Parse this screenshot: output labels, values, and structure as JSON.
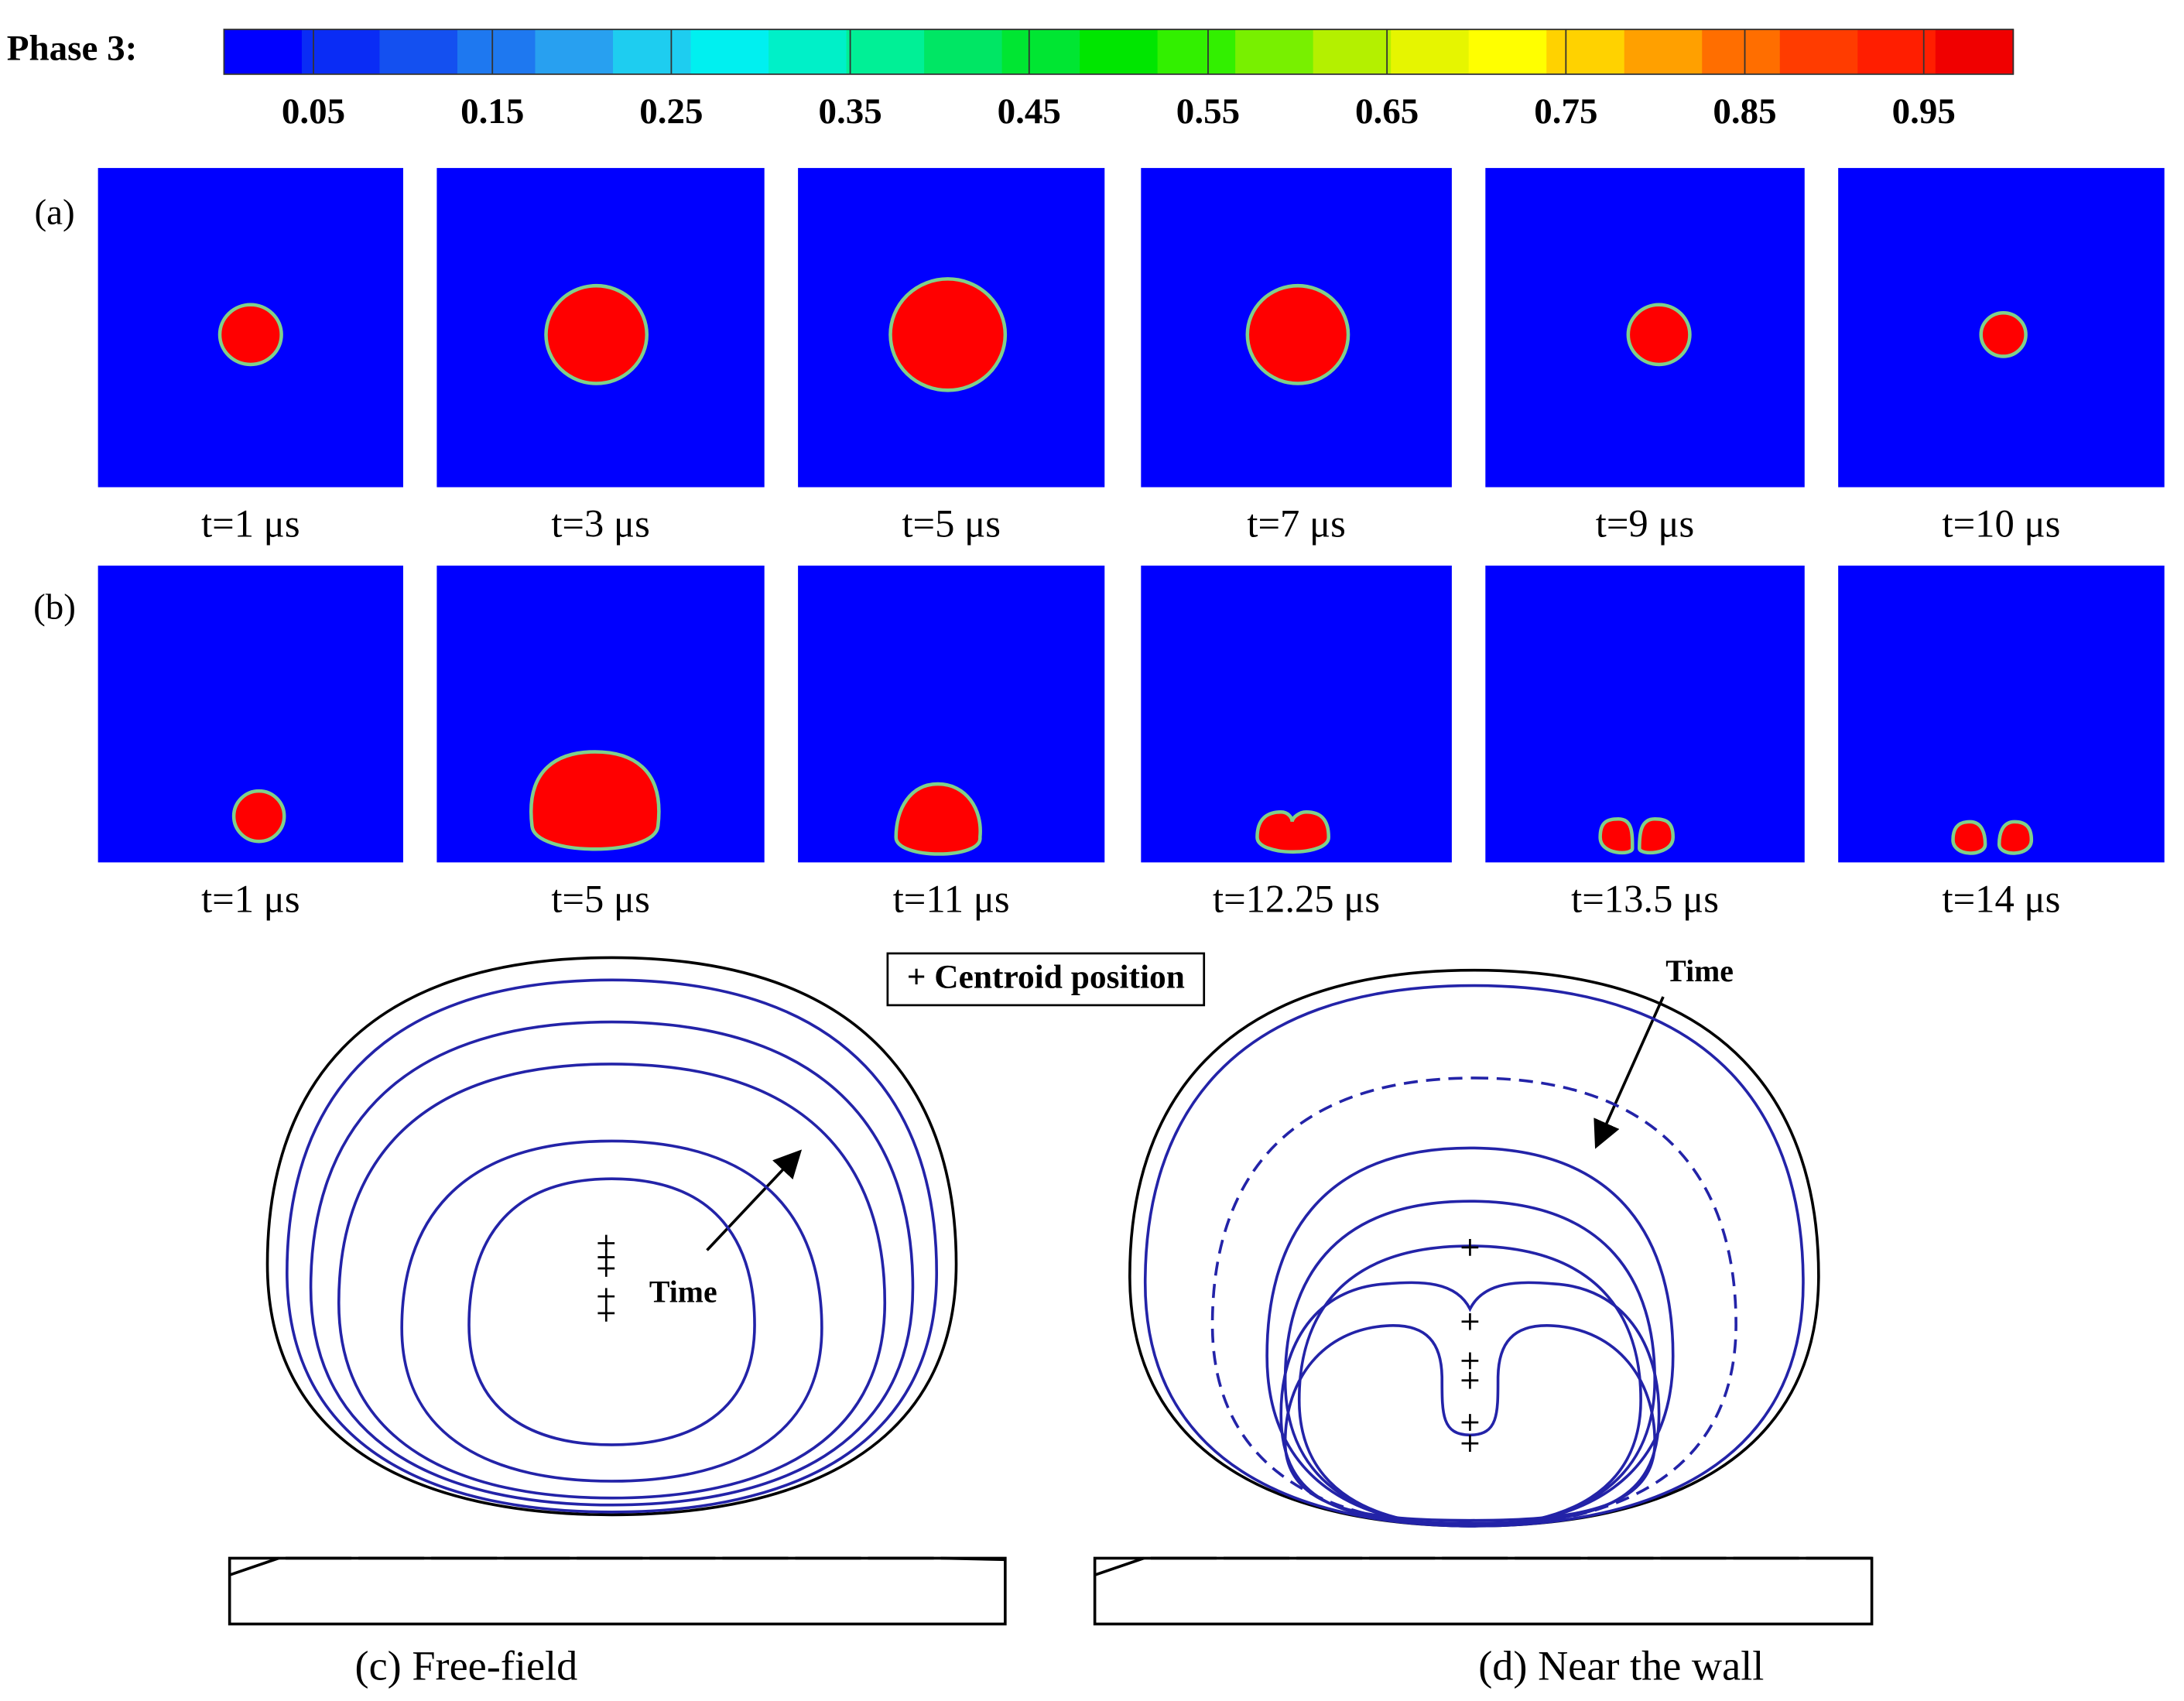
{
  "colorbar": {
    "label": "Phase 3:",
    "lim": [
      0,
      1
    ],
    "ticks": [
      0.05,
      0.15,
      0.25,
      0.35,
      0.45,
      0.55,
      0.65,
      0.75,
      0.85,
      0.95
    ],
    "colors": [
      "#0000ff",
      "#0a2cf5",
      "#1450f0",
      "#1e78f0",
      "#28a0f0",
      "#1ecdf0",
      "#00f0f0",
      "#00f0c8",
      "#00f096",
      "#00e664",
      "#00e632",
      "#00e600",
      "#32f000",
      "#78f000",
      "#b4f000",
      "#e6f500",
      "#ffff00",
      "#ffd200",
      "#ffa000",
      "#ff6e00",
      "#ff3c00",
      "#ff1e00",
      "#f00000"
    ]
  },
  "rows": [
    {
      "label": "(a)",
      "captions": [
        "t=1 μs",
        "t=3 μs",
        "t=5 μs",
        "t=7 μs",
        "t=9 μs",
        "t=10 μs"
      ]
    },
    {
      "label": "(b)",
      "captions": [
        "t=1 μs",
        "t=5 μs",
        "t=11 μs",
        "t=12.25 μs",
        "t=13.5 μs",
        "t=14 μs"
      ]
    }
  ],
  "legend": "+ Centroid position",
  "panels": [
    {
      "arrow_label": "Time",
      "caption": "(c) Free-field"
    },
    {
      "arrow_label": "Time",
      "caption": "(d) Near the wall"
    }
  ]
}
